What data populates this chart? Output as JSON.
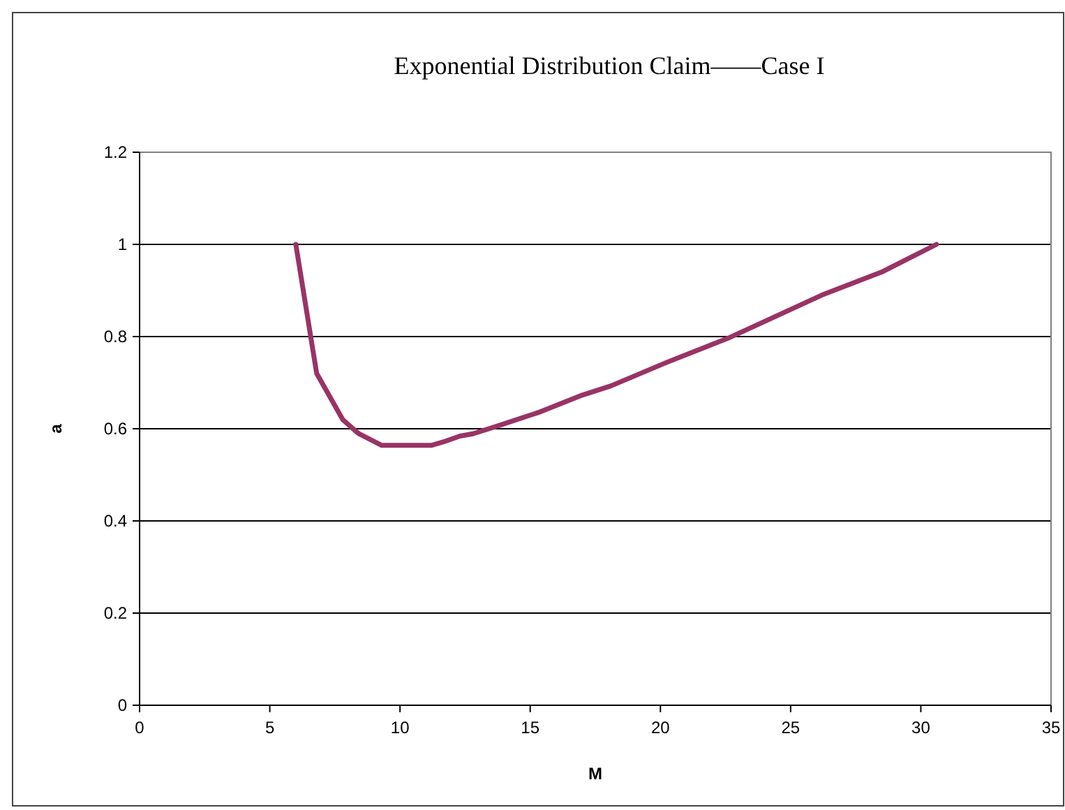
{
  "chart_data": {
    "type": "line",
    "title": "Exponential Distribution Claim——Case I",
    "xlabel": "M",
    "ylabel": "a",
    "xlim": [
      0,
      35
    ],
    "xticks": [
      0,
      5,
      10,
      15,
      20,
      25,
      30,
      35
    ],
    "ylim": [
      0,
      1.2
    ],
    "yticks": [
      0,
      0.2,
      0.4,
      0.6,
      0.8,
      1,
      1.2
    ],
    "grid": "y",
    "marker": "none",
    "line_style": "solid",
    "series": [
      {
        "color": "#993366",
        "x": [
          6.0,
          6.8,
          7.3,
          7.8,
          8.4,
          9.3,
          11.2,
          11.7,
          12.3,
          12.8,
          13.8,
          15.3,
          17.0,
          18.1,
          20.2,
          22.7,
          26.2,
          28.5,
          30.6
        ],
        "values": [
          1.0,
          0.72,
          0.67,
          0.62,
          0.59,
          0.564,
          0.564,
          0.572,
          0.584,
          0.589,
          0.607,
          0.635,
          0.673,
          0.693,
          0.743,
          0.799,
          0.89,
          0.94,
          1.0
        ]
      }
    ]
  }
}
